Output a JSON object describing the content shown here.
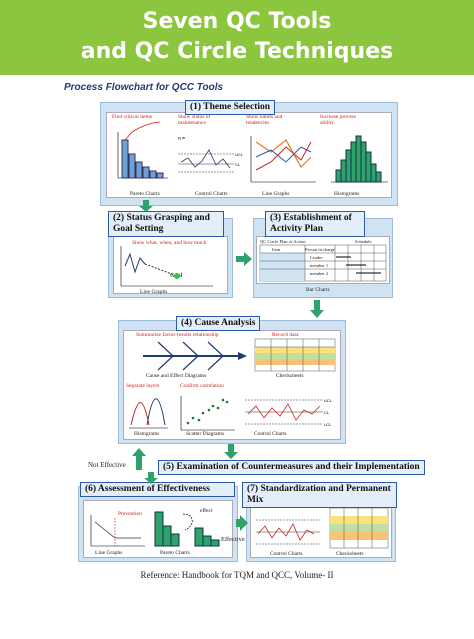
{
  "banner": {
    "line1": "Seven QC Tools",
    "line2": "and QC Circle Techniques"
  },
  "subtitle": "Process Flowchart for QCC Tools",
  "s1": {
    "title": "(1) Theme Selection",
    "notes": [
      "Find critical items",
      "Show status of maintenance",
      "Show habits and tendencies",
      "Increase process ability"
    ],
    "captions": [
      "Pareto Charts",
      "Control Charts",
      "Line Graphs",
      "Histograms"
    ]
  },
  "s2": {
    "title": "(2) Status Grasping and Goal Setting",
    "note": "Show what, when, and how much",
    "goal": "Goal",
    "caption": "Line Graphs"
  },
  "s3": {
    "title": "(3) Establishment of Activity Plan",
    "table_title": "QC Circle Plan of Action",
    "schedule": "Schedule",
    "headers": [
      "Item",
      "Person in charge"
    ],
    "rows": [
      [
        "Theme Selection",
        "Leader"
      ],
      [
        "Data Collection",
        "member 1"
      ],
      [
        "Cause Identification",
        "member 2"
      ]
    ],
    "caption": "Bar Charts"
  },
  "s4": {
    "title": "(4) Cause Analysis",
    "note1": "Summarize factor-results relationship",
    "note2": "Record data",
    "note3": "Separate layers",
    "note4": "Confirm correlation",
    "captions": [
      "Cause and Effect Diagrams",
      "Checksheets",
      "Histograms",
      "Scatter Diagrams",
      "Control Charts"
    ]
  },
  "s5": {
    "title": "(5) Examination of Countermeasures and their Implementation"
  },
  "s6": {
    "title": "(6) Assessment of Effectiveness",
    "captions": [
      "Line Graphs",
      "Pareto Charts"
    ],
    "prev": "Prevention",
    "effect": "effect"
  },
  "s7": {
    "title": "(7) Standardization and Permanent Mix",
    "captions": [
      "Control Charts",
      "Checksheets"
    ]
  },
  "flow": {
    "not_effective": "Not Effective",
    "effective": "Effective"
  },
  "axis": {
    "ucl": "UCL",
    "cl": "CL",
    "lcl": "LCL",
    "n": "n ="
  },
  "reference": "Reference: Handbook for TQM and QCC, Volume- II"
}
